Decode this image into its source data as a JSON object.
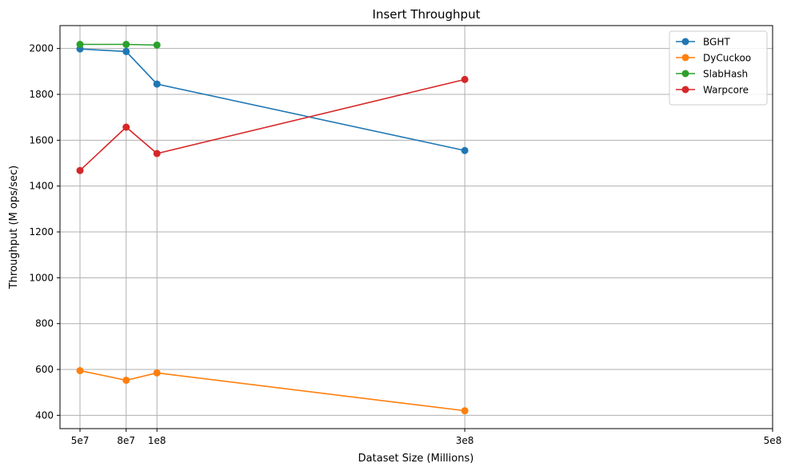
{
  "chart_data": {
    "type": "line",
    "title": "Insert Throughput",
    "xlabel": "Dataset Size (Millions)",
    "ylabel": "Throughput (M ops/sec)",
    "xlim": [
      37000000,
      500000000
    ],
    "ylim": [
      342,
      2100
    ],
    "x_ticks": [
      {
        "value": 50000000,
        "label": "5e7"
      },
      {
        "value": 80000000,
        "label": "8e7"
      },
      {
        "value": 100000000,
        "label": "1e8"
      },
      {
        "value": 300000000,
        "label": "3e8"
      },
      {
        "value": 500000000,
        "label": "5e8"
      }
    ],
    "y_ticks": [
      400,
      600,
      800,
      1000,
      1200,
      1400,
      1600,
      1800,
      2000
    ],
    "grid": true,
    "legend_position": "top-right",
    "series": [
      {
        "name": "BGHT",
        "color": "#1f77b4",
        "points": [
          [
            50000000,
            1998
          ],
          [
            80000000,
            1987
          ],
          [
            100000000,
            1845
          ],
          [
            300000000,
            1555
          ]
        ]
      },
      {
        "name": "DyCuckoo",
        "color": "#ff7f0e",
        "points": [
          [
            50000000,
            595
          ],
          [
            80000000,
            553
          ],
          [
            100000000,
            585
          ],
          [
            300000000,
            420
          ]
        ]
      },
      {
        "name": "SlabHash",
        "color": "#2ca02c",
        "points": [
          [
            50000000,
            2018
          ],
          [
            80000000,
            2018
          ],
          [
            100000000,
            2015
          ]
        ]
      },
      {
        "name": "Warpcore",
        "color": "#d62728",
        "points": [
          [
            50000000,
            1468
          ],
          [
            80000000,
            1657
          ],
          [
            100000000,
            1542
          ],
          [
            300000000,
            1865
          ]
        ]
      }
    ]
  }
}
